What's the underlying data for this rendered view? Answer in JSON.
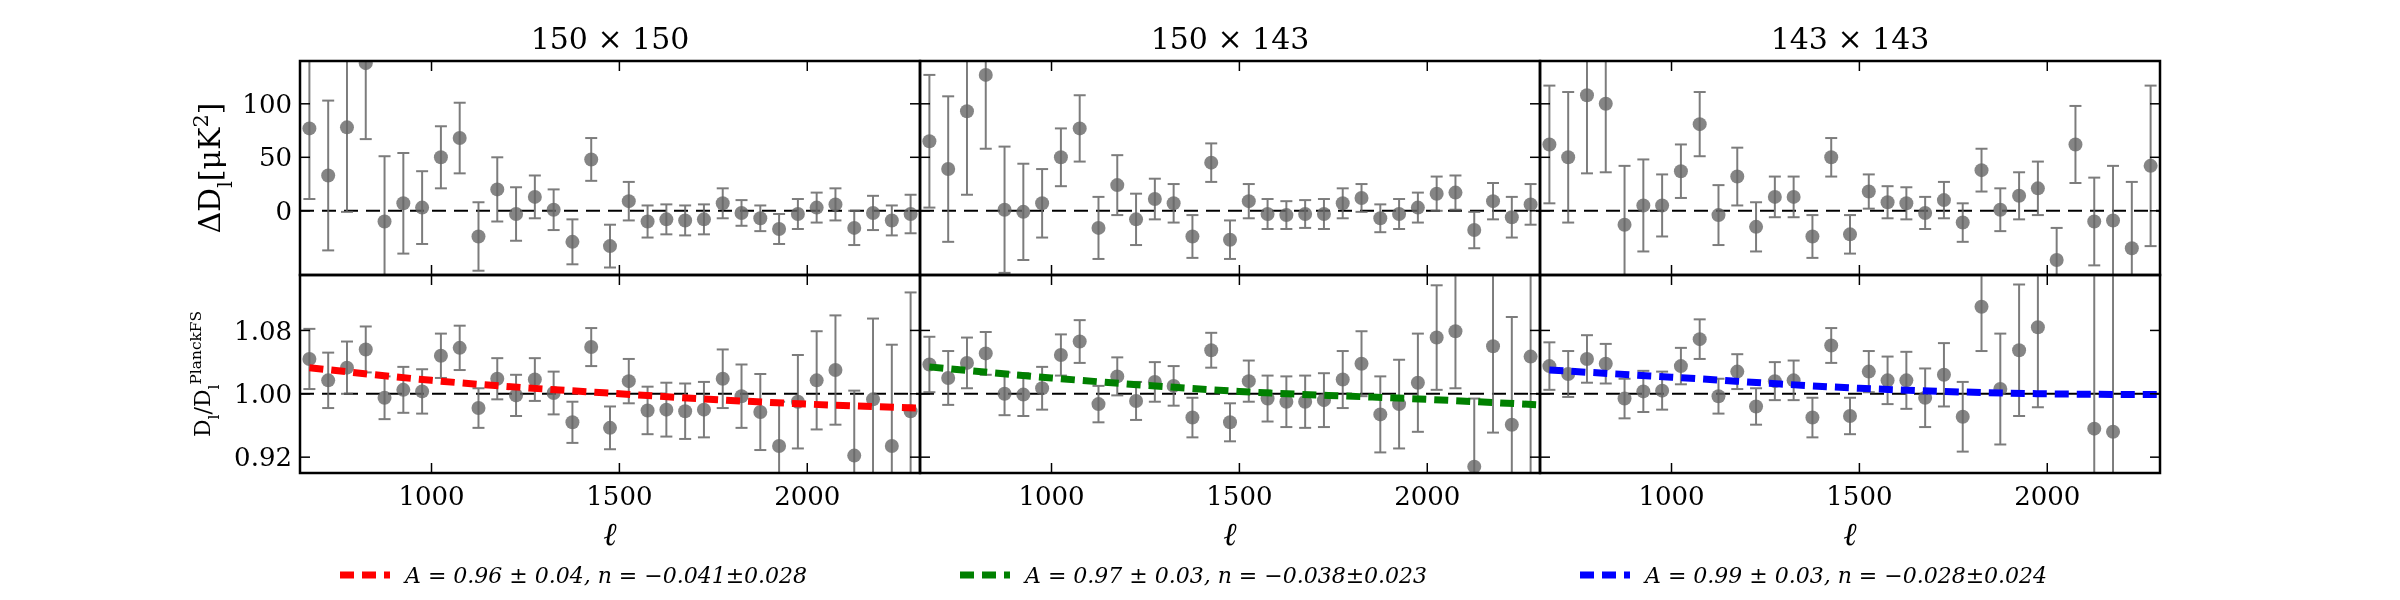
{
  "chart_data": [
    {
      "type": "scatter",
      "title": "150 × 150",
      "ylabel": "ΔD$_{l}$[μK$^{2}$]",
      "marker": "circle",
      "tick_labels": "y",
      "xlim": [
        650,
        2300
      ],
      "xticks": [
        1000,
        1500,
        2000
      ],
      "ylim": [
        -60,
        140
      ],
      "yticks": [
        0,
        50,
        100
      ],
      "ref_lines": [
        {
          "axis": "y",
          "value": 0,
          "color": "#000000",
          "line_style": "dashed"
        }
      ],
      "x": [
        675,
        725,
        775,
        825,
        875,
        925,
        975,
        1025,
        1075,
        1125,
        1175,
        1225,
        1275,
        1325,
        1375,
        1425,
        1475,
        1525,
        1575,
        1625,
        1675,
        1725,
        1775,
        1825,
        1875,
        1925,
        1975,
        2025,
        2075,
        2125,
        2175,
        2225,
        2275
      ],
      "series": [
        {
          "color": "#666666",
          "values": [
            77,
            33,
            78,
            138,
            -10,
            7,
            3,
            50,
            68,
            -24,
            20,
            -3,
            13,
            1,
            -29,
            48,
            -33,
            9,
            -10,
            -8,
            -9,
            -8,
            7,
            -2,
            -7,
            -17,
            -3,
            3,
            6,
            -16,
            -2,
            -9,
            -3
          ],
          "errors": [
            [
              11,
              140
            ],
            70,
            [
              -1,
              140
            ],
            [
              67,
              140
            ],
            [
              -60,
              51
            ],
            47,
            34,
            29,
            33,
            32,
            30,
            25,
            20,
            19,
            21,
            20,
            20,
            18,
            15,
            14,
            14,
            14,
            14,
            12,
            12,
            14,
            14,
            14,
            15,
            16,
            16,
            14,
            18
          ]
        }
      ]
    },
    {
      "type": "scatter",
      "title": "150 × 143",
      "marker": "circle",
      "tick_labels": false,
      "xlim": [
        650,
        2300
      ],
      "xticks": [
        1000,
        1500,
        2000
      ],
      "ylim": [
        -60,
        140
      ],
      "yticks": [
        0,
        50,
        100
      ],
      "ref_lines": [
        {
          "axis": "y",
          "value": 0,
          "color": "#000000",
          "line_style": "dashed"
        }
      ],
      "x": [
        675,
        725,
        775,
        825,
        875,
        925,
        975,
        1025,
        1075,
        1125,
        1175,
        1225,
        1275,
        1325,
        1375,
        1425,
        1475,
        1525,
        1575,
        1625,
        1675,
        1725,
        1775,
        1825,
        1875,
        1925,
        1975,
        2025,
        2075,
        2125,
        2175,
        2225,
        2275
      ],
      "series": [
        {
          "color": "#666666",
          "values": [
            65,
            39,
            93,
            127,
            1,
            -1,
            7,
            50,
            77,
            -16,
            24,
            -8,
            11,
            7,
            -24,
            45,
            -27,
            9,
            -3,
            -4,
            -3,
            -3,
            7,
            12,
            -7,
            -3,
            3,
            16,
            17,
            -18,
            9,
            -6,
            6
          ],
          "errors": [
            62,
            68,
            [
              15,
              140
            ],
            [
              58,
              140
            ],
            59,
            45,
            32,
            27,
            31,
            29,
            28,
            24,
            19,
            18,
            20,
            18,
            18,
            16,
            14,
            13,
            13,
            14,
            14,
            13,
            13,
            14,
            14,
            16,
            16,
            17,
            17,
            19,
            19
          ]
        }
      ]
    },
    {
      "type": "scatter",
      "title": "143 × 143",
      "marker": "circle",
      "tick_labels": false,
      "xlim": [
        650,
        2300
      ],
      "xticks": [
        1000,
        1500,
        2000
      ],
      "ylim": [
        -60,
        140
      ],
      "yticks": [
        0,
        50,
        100
      ],
      "ref_lines": [
        {
          "axis": "y",
          "value": 0,
          "color": "#000000",
          "line_style": "dashed"
        }
      ],
      "x": [
        675,
        725,
        775,
        825,
        875,
        925,
        975,
        1025,
        1075,
        1125,
        1175,
        1225,
        1275,
        1325,
        1375,
        1425,
        1475,
        1525,
        1575,
        1625,
        1675,
        1725,
        1775,
        1825,
        1875,
        1925,
        1975,
        2025,
        2075,
        2125,
        2175,
        2225,
        2275
      ],
      "series": [
        {
          "color": "#666666",
          "values": [
            62,
            50,
            108,
            100,
            -13,
            5,
            5,
            37,
            81,
            -4,
            32,
            -15,
            13,
            13,
            -24,
            50,
            -22,
            18,
            8,
            7,
            -2,
            10,
            -11,
            38,
            1,
            14,
            21,
            -46,
            62,
            -10,
            -9,
            -35,
            42
          ],
          "errors": [
            55,
            61,
            [
              35,
              140
            ],
            [
              36,
              140
            ],
            [
              -60,
              42
            ],
            43,
            29,
            25,
            30,
            28,
            27,
            23,
            19,
            19,
            20,
            18,
            18,
            16,
            15,
            15,
            15,
            17,
            18,
            20,
            20,
            22,
            25,
            [
              -60,
              -16
            ],
            36,
            41,
            [
              -60,
              42
            ],
            [
              -60,
              27
            ],
            75
          ]
        }
      ]
    },
    {
      "type": "scatter",
      "xlabel": "ℓ",
      "ylabel": "D$_{l}$/D$_{l}$$^{PlanckFS}$",
      "marker": "circle",
      "legend": "bottom",
      "xlim": [
        650,
        2300
      ],
      "xticks": [
        1000,
        1500,
        2000
      ],
      "ylim": [
        0.9,
        1.15
      ],
      "yticks": [
        0.92,
        {
          "value": 1,
          "label": "1.00"
        },
        1.08
      ],
      "ref_lines": [
        {
          "axis": "y",
          "value": 1,
          "color": "#000000",
          "line_style": "dashed"
        }
      ],
      "x": [
        675,
        725,
        775,
        825,
        875,
        925,
        975,
        1025,
        1075,
        1125,
        1175,
        1225,
        1275,
        1325,
        1375,
        1425,
        1475,
        1525,
        1575,
        1625,
        1675,
        1725,
        1775,
        1825,
        1875,
        1925,
        1975,
        2025,
        2075,
        2125,
        2175,
        2225,
        2275
      ],
      "series": [
        {
          "color": "#666666",
          "values": [
            1.044,
            1.017,
            1.033,
            1.056,
            0.995,
            1.005,
            1.003,
            1.048,
            1.058,
            0.982,
            1.019,
            0.998,
            1.018,
            1.001,
            0.964,
            1.059,
            0.957,
            1.016,
            0.979,
            0.98,
            0.978,
            0.98,
            1.019,
            0.997,
            0.977,
            0.934,
            0.99,
            1.017,
            1.03,
            0.922,
            0.993,
            0.934,
            0.978
          ],
          "errors": [
            0.038,
            0.035,
            0.033,
            0.029,
            0.027,
            0.029,
            0.028,
            0.028,
            0.028,
            0.025,
            0.026,
            0.026,
            0.027,
            0.027,
            0.026,
            0.024,
            0.027,
            0.028,
            0.03,
            0.034,
            0.035,
            0.035,
            0.037,
            0.04,
            0.048,
            [
              0.9,
              0.99
            ],
            0.059,
            0.062,
            0.069,
            [
              0.9,
              1.004
            ],
            [
              0.9,
              1.095
            ],
            [
              0.9,
              1.062
            ],
            [
              0.9,
              1.128
            ]
          ]
        },
        {
          "type": "line",
          "marker": "none",
          "name": "A = 0.96 ± 0.04, n = −0.041±0.028",
          "color": "#ff0000",
          "line_style": "dashed",
          "x": [
            675,
            1000,
            1500,
            2000,
            2300
          ],
          "values": [
            1.033,
            1.017,
            1.0,
            0.987,
            0.982
          ]
        }
      ]
    },
    {
      "type": "scatter",
      "xlabel": "ℓ",
      "marker": "circle",
      "legend": "bottom",
      "tick_labels": "x",
      "xlim": [
        650,
        2300
      ],
      "xticks": [
        1000,
        1500,
        2000
      ],
      "ylim": [
        0.9,
        1.15
      ],
      "yticks": [
        0.92,
        1,
        1.08
      ],
      "ref_lines": [
        {
          "axis": "y",
          "value": 1,
          "color": "#000000",
          "line_style": "dashed"
        }
      ],
      "x": [
        675,
        725,
        775,
        825,
        875,
        925,
        975,
        1025,
        1075,
        1125,
        1175,
        1225,
        1275,
        1325,
        1375,
        1425,
        1475,
        1525,
        1575,
        1625,
        1675,
        1725,
        1775,
        1825,
        1875,
        1925,
        1975,
        2025,
        2075,
        2125,
        2175,
        2225,
        2275
      ],
      "series": [
        {
          "color": "#666666",
          "values": [
            1.037,
            1.02,
            1.039,
            1.051,
            1.0,
            0.999,
            1.007,
            1.049,
            1.066,
            0.987,
            1.022,
            0.991,
            1.015,
            1.01,
            0.97,
            1.055,
            0.964,
            1.016,
            0.994,
            0.99,
            0.99,
            0.992,
            1.018,
            1.038,
            0.974,
            0.987,
            1.014,
            1.071,
            1.079,
            0.908,
            1.06,
            0.961,
            1.047
          ],
          "errors": [
            0.035,
            0.034,
            0.032,
            0.027,
            0.027,
            0.027,
            0.027,
            0.026,
            0.027,
            0.023,
            0.024,
            0.024,
            0.025,
            0.025,
            0.025,
            0.022,
            0.024,
            0.026,
            0.029,
            0.032,
            0.033,
            0.034,
            0.036,
            0.041,
            0.048,
            0.056,
            0.062,
            0.066,
            [
              1.007,
              1.15
            ],
            [
              0.9,
              0.994
            ],
            [
              0.951,
              1.15
            ],
            [
              0.9,
              1.097
            ],
            [
              0.9,
              1.15
            ]
          ]
        },
        {
          "type": "line",
          "marker": "none",
          "name": "A = 0.97 ± 0.03, n = −0.038±0.023",
          "color": "#008000",
          "line_style": "dashed",
          "x": [
            675,
            1000,
            1500,
            2000,
            2300
          ],
          "values": [
            1.034,
            1.02,
            1.003,
            0.993,
            0.986
          ]
        }
      ]
    },
    {
      "type": "scatter",
      "xlabel": "ℓ",
      "marker": "circle",
      "legend": "bottom",
      "tick_labels": "x",
      "xlim": [
        650,
        2300
      ],
      "xticks": [
        1000,
        1500,
        2000
      ],
      "ylim": [
        0.9,
        1.15
      ],
      "yticks": [
        0.92,
        1,
        1.08
      ],
      "ref_lines": [
        {
          "axis": "y",
          "value": 1,
          "color": "#000000",
          "line_style": "dashed"
        }
      ],
      "series": [
        {
          "color": "#666666",
          "x": [
            675,
            725,
            775,
            825,
            875,
            925,
            975,
            1025,
            1075,
            1125,
            1175,
            1225,
            1275,
            1325,
            1375,
            1425,
            1475,
            1525,
            1575,
            1625,
            1675,
            1725,
            1775,
            1825,
            1875,
            1925,
            1975,
            2125,
            2175
          ],
          "values": [
            1.035,
            1.025,
            1.044,
            1.038,
            0.994,
            1.003,
            1.004,
            1.035,
            1.069,
            0.997,
            1.028,
            0.984,
            1.016,
            1.017,
            0.97,
            1.061,
            0.972,
            1.028,
            1.017,
            1.017,
            0.995,
            1.024,
            0.971,
            1.11,
            1.006,
            1.055,
            1.084,
            0.956,
            0.952
          ],
          "errors": [
            0.03,
            0.029,
            0.03,
            0.025,
            0.025,
            0.026,
            0.024,
            0.023,
            0.025,
            0.022,
            0.022,
            0.023,
            0.024,
            0.025,
            0.025,
            0.022,
            0.023,
            0.026,
            0.03,
            0.036,
            0.037,
            0.04,
            0.044,
            [
              1.054,
              1.15
            ],
            0.07,
            0.083,
            [
              0.983,
              1.15
            ],
            [
              0.9,
              1.15
            ],
            [
              0.9,
              1.15
            ]
          ]
        },
        {
          "type": "line",
          "marker": "none",
          "name": "A = 0.99 ± 0.03, n = −0.028±0.024",
          "color": "#0000ff",
          "line_style": "dashed",
          "x": [
            675,
            1000,
            1500,
            2000,
            2300
          ],
          "values": [
            1.03,
            1.021,
            1.007,
            1.0,
            0.999
          ]
        }
      ]
    }
  ]
}
